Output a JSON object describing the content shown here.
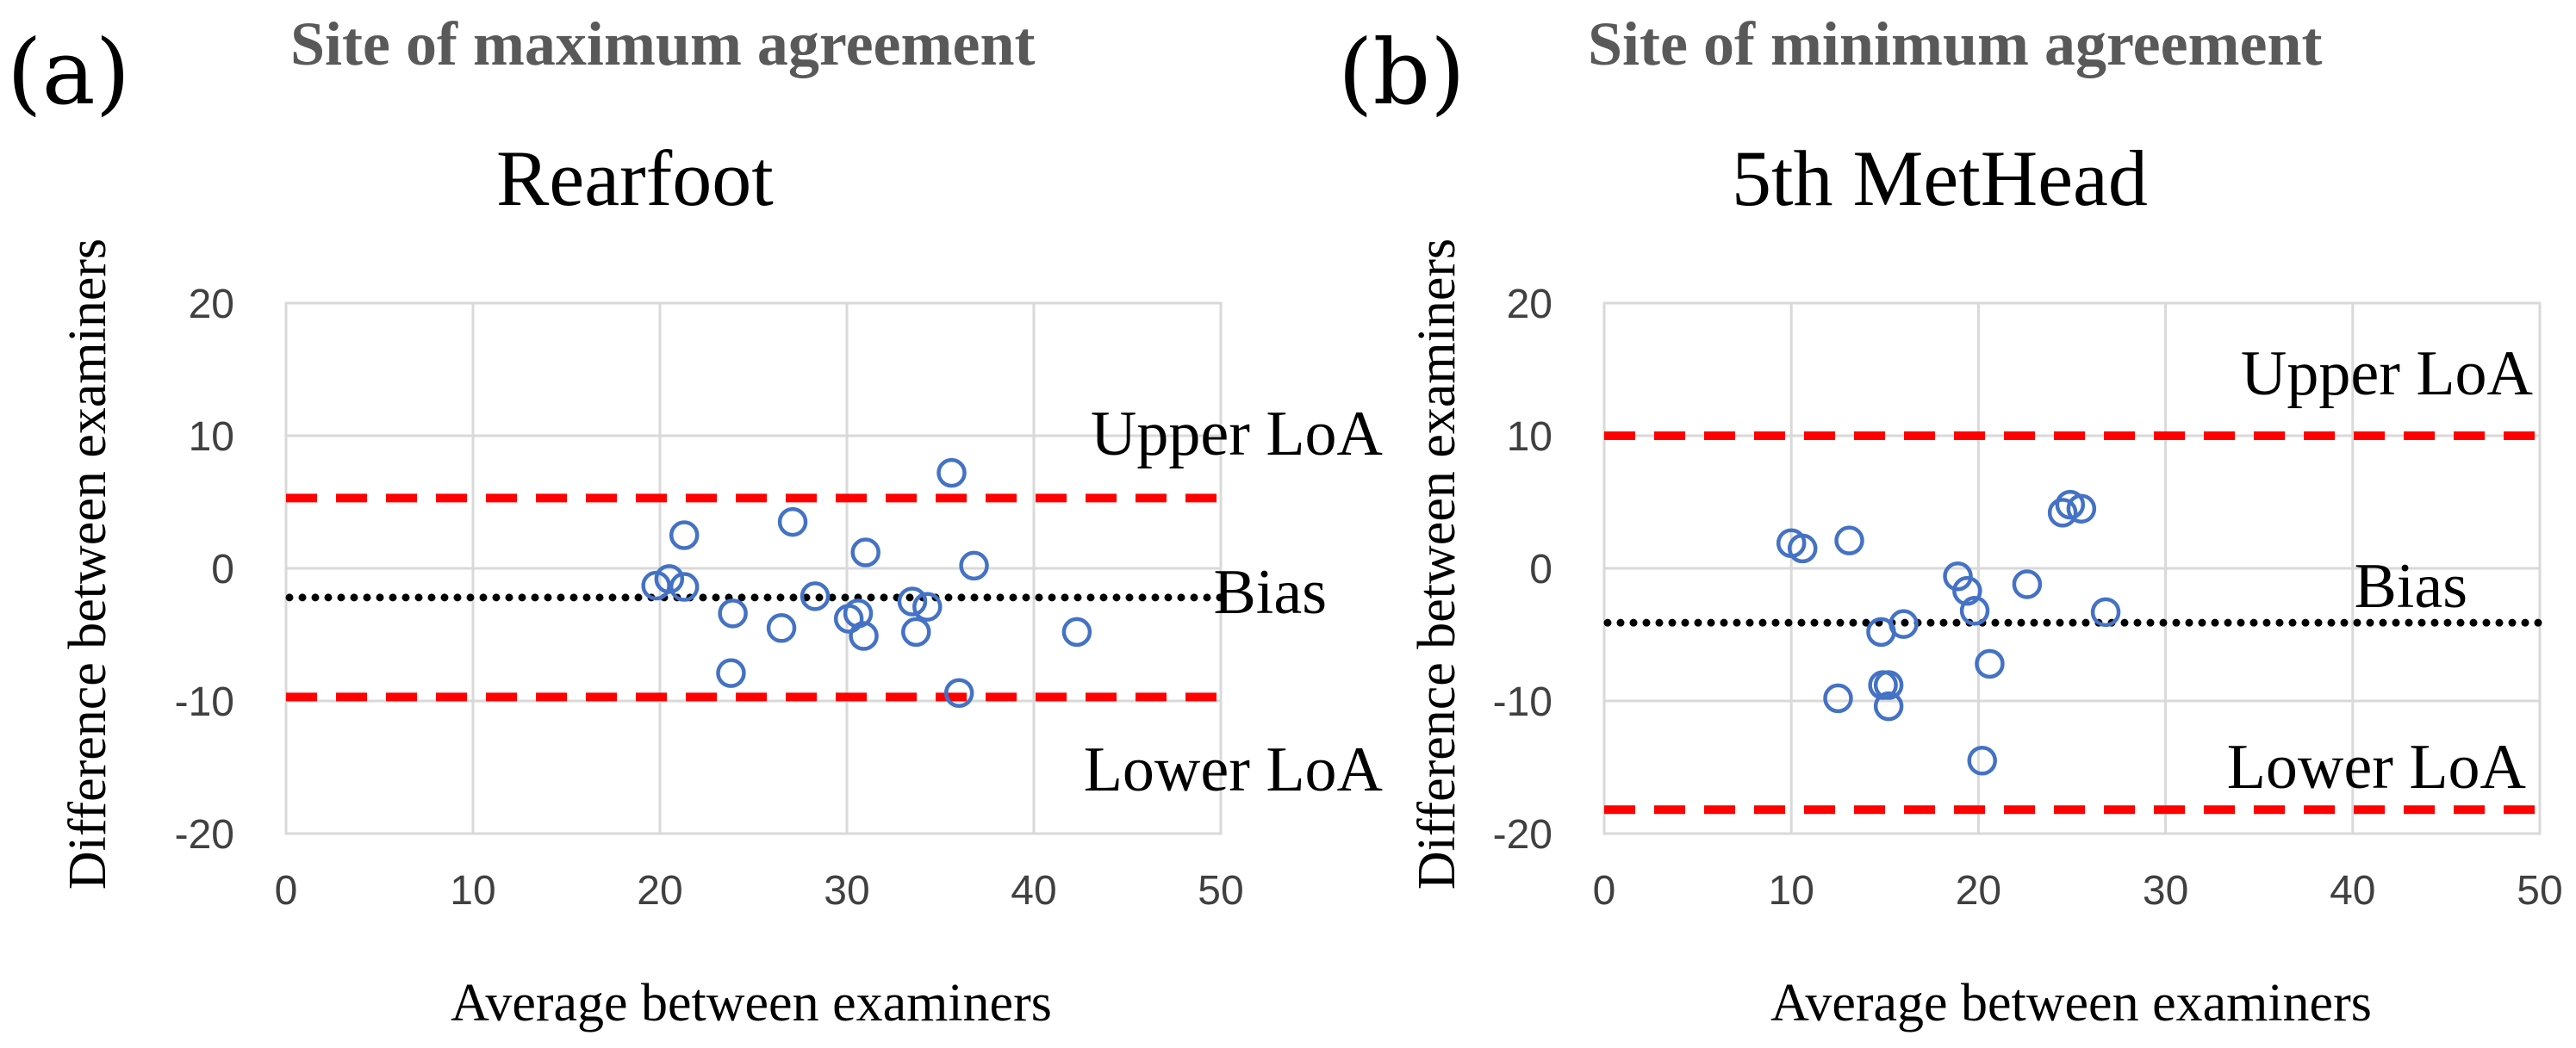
{
  "colors": {
    "points": "#4472C4",
    "loa": "#FF0000",
    "bias": "#000000",
    "site_title": "#595959"
  },
  "chart_data": [
    {
      "type": "scatter",
      "panel_label": "(a)",
      "site_title": "Site of maximum agreement",
      "title": "Rearfoot",
      "xlabel": "Average between examiners",
      "ylabel": "Difference between examiners",
      "xlim": [
        0,
        50
      ],
      "ylim": [
        -20,
        20
      ],
      "xticks": [
        0,
        10,
        20,
        30,
        40,
        50
      ],
      "yticks": [
        20,
        10,
        0,
        -10,
        -20
      ],
      "grid": true,
      "upper_loa": {
        "label": "Upper LoA",
        "value": 5.3
      },
      "bias": {
        "label": "Bias",
        "value": -2.2
      },
      "lower_loa": {
        "label": "Lower LoA",
        "value": -9.7
      },
      "points": [
        {
          "x": 19.8,
          "y": -1.3
        },
        {
          "x": 20.5,
          "y": -0.8
        },
        {
          "x": 21.3,
          "y": -1.4
        },
        {
          "x": 21.3,
          "y": 2.5
        },
        {
          "x": 23.9,
          "y": -3.4
        },
        {
          "x": 23.8,
          "y": -7.9
        },
        {
          "x": 26.5,
          "y": -4.5
        },
        {
          "x": 27.1,
          "y": 3.5
        },
        {
          "x": 28.3,
          "y": -2.1
        },
        {
          "x": 30.1,
          "y": -3.8
        },
        {
          "x": 30.6,
          "y": -3.4
        },
        {
          "x": 30.9,
          "y": -5.1
        },
        {
          "x": 31.0,
          "y": 1.2
        },
        {
          "x": 33.5,
          "y": -2.5
        },
        {
          "x": 33.7,
          "y": -4.8
        },
        {
          "x": 34.3,
          "y": -2.9
        },
        {
          "x": 35.6,
          "y": 7.2
        },
        {
          "x": 36.0,
          "y": -9.4
        },
        {
          "x": 36.8,
          "y": 0.2
        },
        {
          "x": 42.3,
          "y": -4.8
        }
      ]
    },
    {
      "type": "scatter",
      "panel_label": "(b)",
      "site_title": "Site of minimum agreement",
      "title": "5th MetHead",
      "xlabel": "Average between examiners",
      "ylabel": "Difference between examiners",
      "xlim": [
        0,
        50
      ],
      "ylim": [
        -20,
        20
      ],
      "xticks": [
        0,
        10,
        20,
        30,
        40,
        50
      ],
      "yticks": [
        20,
        10,
        0,
        -10,
        -20
      ],
      "grid": true,
      "upper_loa": {
        "label": "Upper LoA",
        "value": 10.0
      },
      "bias": {
        "label": "Bias",
        "value": -4.1
      },
      "lower_loa": {
        "label": "Lower LoA",
        "value": -18.2
      },
      "points": [
        {
          "x": 10.0,
          "y": 1.9
        },
        {
          "x": 10.6,
          "y": 1.5
        },
        {
          "x": 13.1,
          "y": 2.1
        },
        {
          "x": 12.5,
          "y": -9.8
        },
        {
          "x": 14.8,
          "y": -4.8
        },
        {
          "x": 14.9,
          "y": -8.8
        },
        {
          "x": 15.2,
          "y": -8.8
        },
        {
          "x": 15.2,
          "y": -10.4
        },
        {
          "x": 16.0,
          "y": -4.2
        },
        {
          "x": 18.9,
          "y": -0.6
        },
        {
          "x": 19.4,
          "y": -1.7
        },
        {
          "x": 19.8,
          "y": -3.2
        },
        {
          "x": 20.2,
          "y": -14.5
        },
        {
          "x": 20.6,
          "y": -7.2
        },
        {
          "x": 22.6,
          "y": -1.2
        },
        {
          "x": 24.5,
          "y": 4.2
        },
        {
          "x": 24.9,
          "y": 4.8
        },
        {
          "x": 25.5,
          "y": 4.5
        },
        {
          "x": 26.8,
          "y": -3.3
        }
      ]
    }
  ]
}
